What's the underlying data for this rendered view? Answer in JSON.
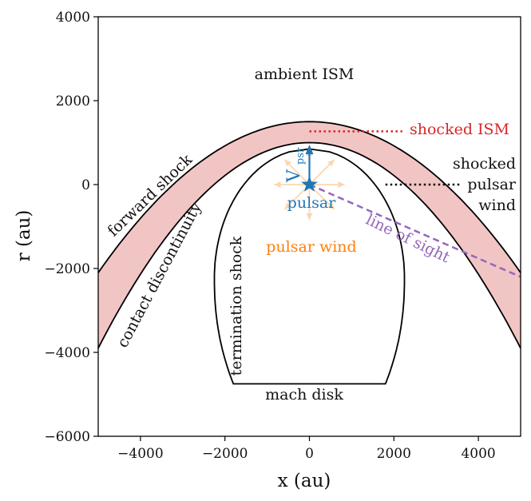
{
  "chart_data": {
    "type": "diagram",
    "xlabel": "x (au)",
    "ylabel": "r (au)",
    "xlim": [
      -5000,
      5000
    ],
    "ylim": [
      -6000,
      4000
    ],
    "xticks": [
      -4000,
      -2000,
      0,
      2000,
      4000
    ],
    "xtick_labels": [
      "−4000",
      "−2000",
      "0",
      "2000",
      "4000"
    ],
    "yticks": [
      -6000,
      -4000,
      -2000,
      0,
      2000,
      4000
    ],
    "ytick_labels": [
      "−6000",
      "−4000",
      "−2000",
      "0",
      "2000",
      "4000"
    ],
    "forward_shock": {
      "apex_r": 1500,
      "r_at_x_5000": -2100
    },
    "contact_discontinuity": {
      "apex_r": 1000,
      "r_at_x_5000": -3900
    },
    "termination_shock": {
      "apex_r": 850,
      "base_r": -4750,
      "half_width_base": 1800,
      "max_half_width": 2250
    },
    "pulsar_position": [
      0,
      0
    ],
    "line_of_sight": {
      "from": [
        0,
        0
      ],
      "to": [
        5000,
        -2200
      ]
    },
    "shocked_ism_marker": {
      "x": [
        0,
        2200
      ],
      "r": 1270
    },
    "shocked_wind_marker": {
      "x": [
        1800,
        3600
      ],
      "r": 0
    },
    "colors": {
      "shocked_ism_fill": "#f2c5c5",
      "shocked_ism": "#d62728",
      "pulsar": "#1f77b4",
      "pulsar_wind": "#ff7f0e",
      "line_of_sight": "#9467bd",
      "wind_arrows": "#fbd6b0"
    }
  },
  "labels": {
    "ambient": "ambient ISM",
    "shocked_ism": "shocked ISM",
    "shocked_wind_1": "shocked",
    "shocked_wind_2": "pulsar",
    "shocked_wind_3": "wind",
    "forward_shock": "forward shock",
    "contact": "contact discontinuity",
    "termination": "termination shock",
    "pulsar": "pulsar",
    "pulsar_wind": "pulsar wind",
    "line_of_sight": "line of sight",
    "mach_disk": "mach disk",
    "v_main": "V",
    "v_sub": "psr"
  }
}
